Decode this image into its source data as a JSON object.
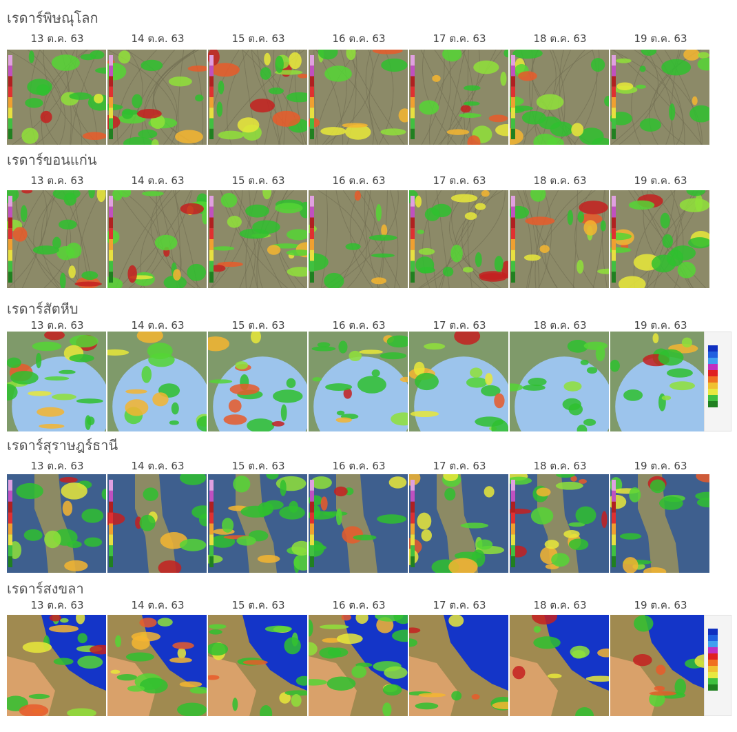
{
  "sections": [
    {
      "title": "เรดาร์พิษณุโลก",
      "dates": [
        "13 ต.ค. 63",
        "14 ต.ค. 63",
        "15 ต.ค. 63",
        "16 ต.ค. 63",
        "17 ต.ค. 63",
        "18 ต.ค. 63",
        "19 ต.ค. 63"
      ]
    },
    {
      "title": "เรดาร์ขอนแก่น",
      "dates": [
        "13 ต.ค. 63",
        "14 ต.ค. 63",
        "15 ต.ค. 63",
        "16 ต.ค. 63",
        "17 ต.ค. 63",
        "18 ต.ค. 63",
        "19 ต.ค. 63"
      ]
    },
    {
      "title": "เรดาร์สัตหีบ",
      "dates": [
        "13 ต.ค. 63",
        "14 ต.ค. 63",
        "15 ต.ค. 63",
        "16 ต.ค. 63",
        "17 ต.ค. 63",
        "18 ต.ค. 63",
        "19 ต.ค. 63"
      ]
    },
    {
      "title": "เรดาร์สุราษฎร์ธานี",
      "dates": [
        "13 ต.ค. 63",
        "14 ต.ค. 63",
        "15 ต.ค. 63",
        "16 ต.ค. 63",
        "17 ต.ค. 63",
        "18 ต.ค. 63",
        "19 ต.ค. 63"
      ]
    },
    {
      "title": "เรดาร์สงขลา",
      "dates": [
        "13 ต.ค. 63",
        "14 ต.ค. 63",
        "15 ต.ค. 63",
        "16 ต.ค. 63",
        "17 ต.ค. 63",
        "18 ต.ค. 63",
        "19 ต.ค. 63"
      ]
    }
  ]
}
